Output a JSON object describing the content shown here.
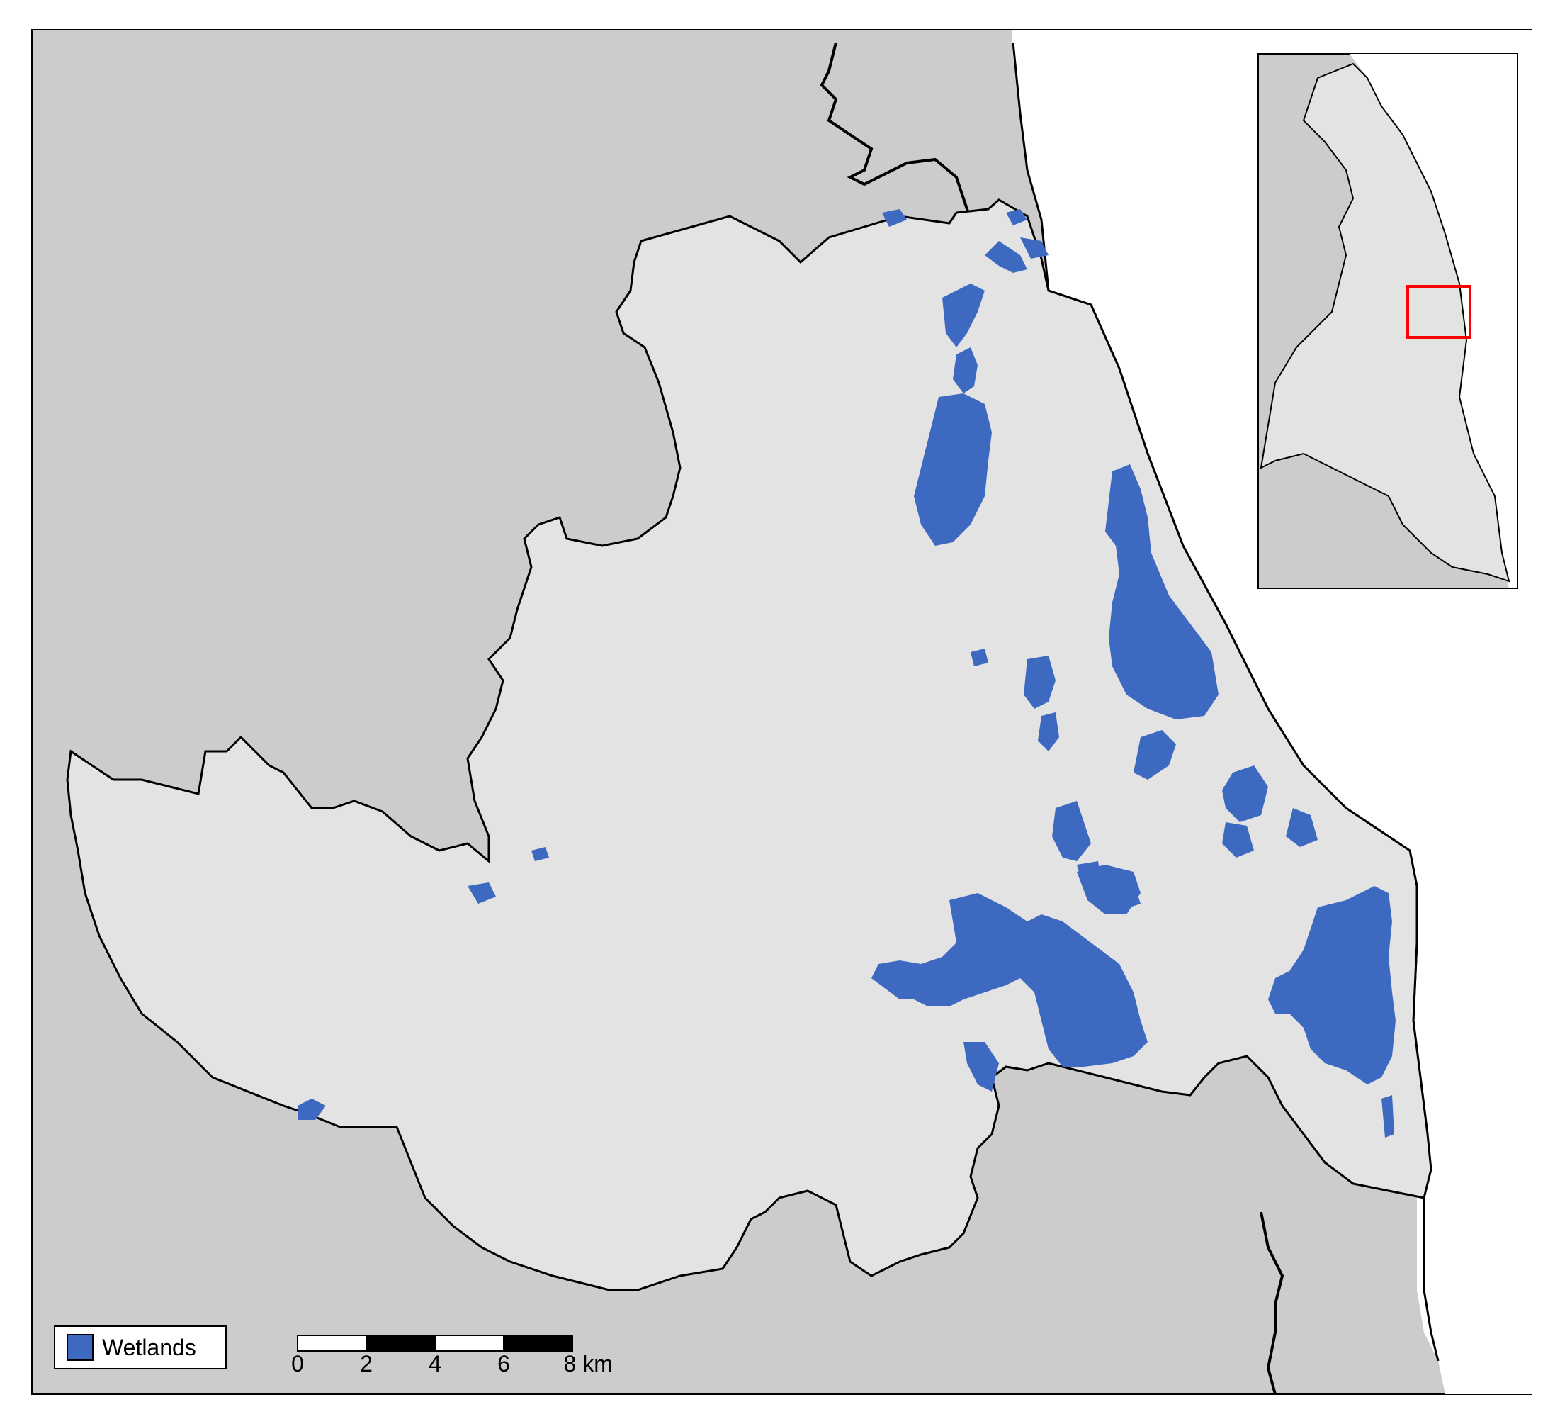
{
  "colors": {
    "background": "#ffffff",
    "surrounding_land": "#cccccc",
    "catchment": "#e3e3e3",
    "wetlands": "#3d69c1",
    "boundary": "#000000",
    "inset_highlight": "#ff0000"
  },
  "legend": {
    "label": "Wetlands",
    "swatch_icon": "wetland-swatch-icon"
  },
  "scale_bar": {
    "ticks": [
      "0",
      "2",
      "4",
      "6",
      "8 km"
    ]
  },
  "inset": {
    "description_icon": "locator-map-icon"
  }
}
